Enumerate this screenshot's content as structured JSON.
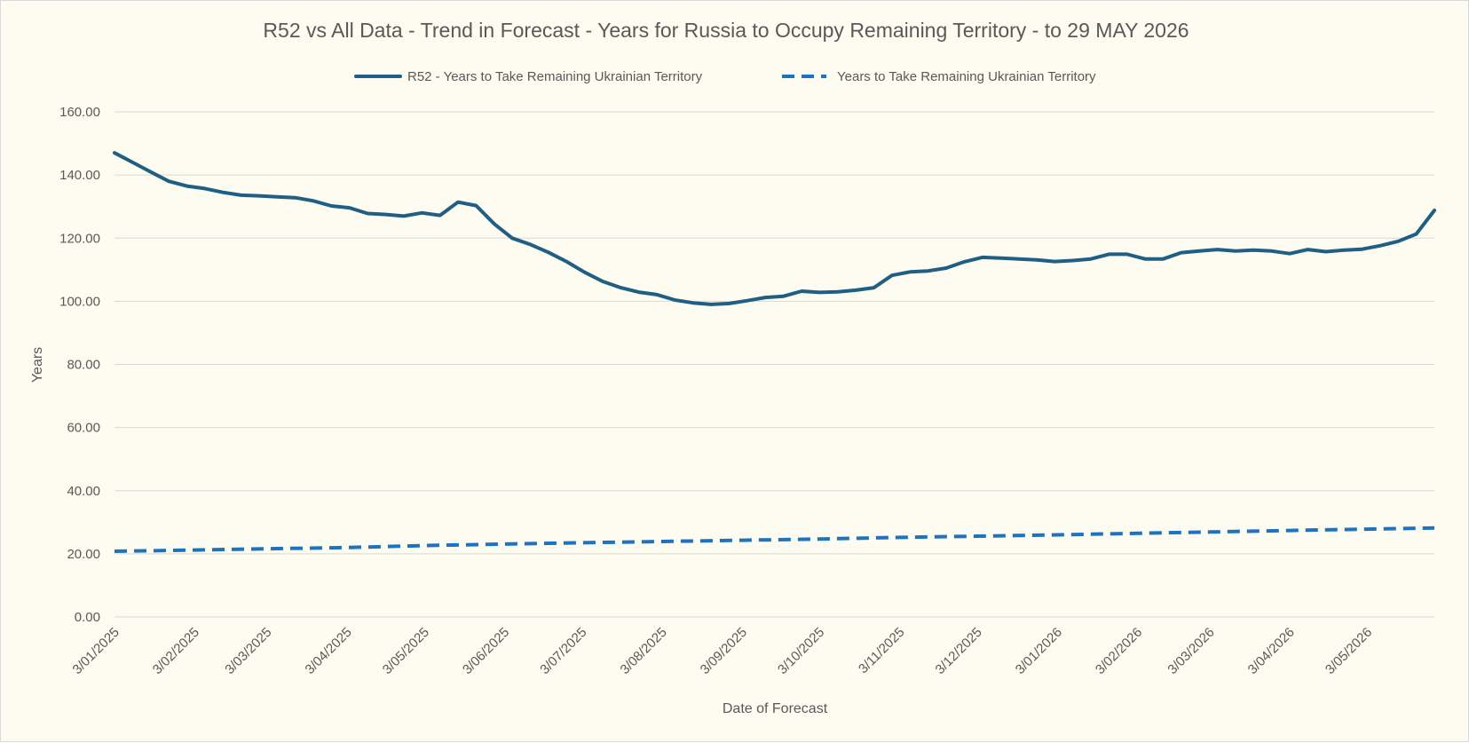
{
  "chart_data": {
    "type": "line",
    "title": "R52 vs All Data  - Trend in Forecast - Years for Russia to Occupy Remaining Territory - to 29 MAY 2026",
    "xlabel": "Date of Forecast",
    "ylabel": "Years",
    "ylim": [
      0,
      160
    ],
    "yticks": [
      "0.00",
      "20.00",
      "40.00",
      "60.00",
      "80.00",
      "100.00",
      "120.00",
      "140.00",
      "160.00"
    ],
    "xlim": [
      "2025-01-03",
      "2026-05-29"
    ],
    "xticks": [
      {
        "date": "2025-01-03",
        "label": "3/01/2025"
      },
      {
        "date": "2025-02-03",
        "label": "3/02/2025"
      },
      {
        "date": "2025-03-03",
        "label": "3/03/2025"
      },
      {
        "date": "2025-04-03",
        "label": "3/04/2025"
      },
      {
        "date": "2025-05-03",
        "label": "3/05/2025"
      },
      {
        "date": "2025-06-03",
        "label": "3/06/2025"
      },
      {
        "date": "2025-07-03",
        "label": "3/07/2025"
      },
      {
        "date": "2025-08-03",
        "label": "3/08/2025"
      },
      {
        "date": "2025-09-03",
        "label": "3/09/2025"
      },
      {
        "date": "2025-10-03",
        "label": "3/10/2025"
      },
      {
        "date": "2025-11-03",
        "label": "3/11/2025"
      },
      {
        "date": "2025-12-03",
        "label": "3/12/2025"
      },
      {
        "date": "2026-01-03",
        "label": "3/01/2026"
      },
      {
        "date": "2026-02-03",
        "label": "3/02/2026"
      },
      {
        "date": "2026-03-03",
        "label": "3/03/2026"
      },
      {
        "date": "2026-04-03",
        "label": "3/04/2026"
      },
      {
        "date": "2026-05-03",
        "label": "3/05/2026"
      }
    ],
    "grid": "horizontal",
    "legend": "top",
    "series": [
      {
        "name": "R52 - Years to Take Remaining Ukrainian Territory",
        "color": "#1f5f84",
        "style": "solid",
        "points": [
          [
            "2025-01-03",
            147.0
          ],
          [
            "2025-01-10",
            144.0
          ],
          [
            "2025-01-17",
            141.0
          ],
          [
            "2025-01-24",
            138.0
          ],
          [
            "2025-01-31",
            136.5
          ],
          [
            "2025-02-07",
            135.7
          ],
          [
            "2025-02-14",
            134.5
          ],
          [
            "2025-02-21",
            133.6
          ],
          [
            "2025-02-28",
            133.4
          ],
          [
            "2025-03-07",
            133.1
          ],
          [
            "2025-03-14",
            132.8
          ],
          [
            "2025-03-21",
            131.8
          ],
          [
            "2025-03-28",
            130.2
          ],
          [
            "2025-04-04",
            129.6
          ],
          [
            "2025-04-11",
            127.8
          ],
          [
            "2025-04-18",
            127.5
          ],
          [
            "2025-04-25",
            127.0
          ],
          [
            "2025-05-02",
            128.0
          ],
          [
            "2025-05-09",
            127.2
          ],
          [
            "2025-05-16",
            131.4
          ],
          [
            "2025-05-23",
            130.3
          ],
          [
            "2025-05-30",
            124.5
          ],
          [
            "2025-06-06",
            120.0
          ],
          [
            "2025-06-13",
            118.0
          ],
          [
            "2025-06-20",
            115.5
          ],
          [
            "2025-06-27",
            112.6
          ],
          [
            "2025-07-04",
            109.2
          ],
          [
            "2025-07-11",
            106.3
          ],
          [
            "2025-07-18",
            104.3
          ],
          [
            "2025-07-25",
            102.9
          ],
          [
            "2025-08-01",
            102.1
          ],
          [
            "2025-08-08",
            100.4
          ],
          [
            "2025-08-15",
            99.5
          ],
          [
            "2025-08-22",
            99.0
          ],
          [
            "2025-08-29",
            99.3
          ],
          [
            "2025-09-05",
            100.2
          ],
          [
            "2025-09-12",
            101.2
          ],
          [
            "2025-09-19",
            101.6
          ],
          [
            "2025-09-26",
            103.2
          ],
          [
            "2025-10-03",
            102.8
          ],
          [
            "2025-10-10",
            103.0
          ],
          [
            "2025-10-17",
            103.5
          ],
          [
            "2025-10-24",
            104.3
          ],
          [
            "2025-10-31",
            108.2
          ],
          [
            "2025-11-07",
            109.3
          ],
          [
            "2025-11-14",
            109.6
          ],
          [
            "2025-11-21",
            110.5
          ],
          [
            "2025-11-28",
            112.5
          ],
          [
            "2025-12-05",
            113.9
          ],
          [
            "2025-12-12",
            113.7
          ],
          [
            "2025-12-19",
            113.4
          ],
          [
            "2025-12-26",
            113.1
          ],
          [
            "2026-01-02",
            112.6
          ],
          [
            "2026-01-09",
            112.9
          ],
          [
            "2026-01-16",
            113.4
          ],
          [
            "2026-01-23",
            114.9
          ],
          [
            "2026-01-30",
            114.9
          ],
          [
            "2026-02-06",
            113.4
          ],
          [
            "2026-02-13",
            113.4
          ],
          [
            "2026-02-20",
            115.4
          ],
          [
            "2026-02-27",
            115.9
          ],
          [
            "2026-03-06",
            116.4
          ],
          [
            "2026-03-13",
            115.9
          ],
          [
            "2026-03-20",
            116.2
          ],
          [
            "2026-03-27",
            115.9
          ],
          [
            "2026-04-03",
            115.1
          ],
          [
            "2026-04-10",
            116.4
          ],
          [
            "2026-04-17",
            115.7
          ],
          [
            "2026-04-24",
            116.2
          ],
          [
            "2026-05-01",
            116.5
          ],
          [
            "2026-05-08",
            117.6
          ],
          [
            "2026-05-15",
            119.0
          ],
          [
            "2026-05-22",
            121.3
          ],
          [
            "2026-05-29",
            128.8
          ]
        ]
      },
      {
        "name": "Years to Take Remaining Ukrainian Territory",
        "color": "#1f73be",
        "style": "dashed",
        "points": [
          [
            "2025-01-03",
            20.8
          ],
          [
            "2025-02-03",
            21.2
          ],
          [
            "2025-03-03",
            21.6
          ],
          [
            "2025-04-03",
            22.0
          ],
          [
            "2025-05-03",
            22.6
          ],
          [
            "2025-06-03",
            23.1
          ],
          [
            "2025-07-03",
            23.5
          ],
          [
            "2025-08-03",
            23.9
          ],
          [
            "2025-09-03",
            24.3
          ],
          [
            "2025-10-03",
            24.7
          ],
          [
            "2025-11-03",
            25.2
          ],
          [
            "2025-12-03",
            25.6
          ],
          [
            "2026-01-03",
            26.0
          ],
          [
            "2026-02-03",
            26.5
          ],
          [
            "2026-03-03",
            26.9
          ],
          [
            "2026-04-03",
            27.4
          ],
          [
            "2026-05-03",
            27.8
          ],
          [
            "2026-05-29",
            28.2
          ]
        ]
      }
    ]
  }
}
